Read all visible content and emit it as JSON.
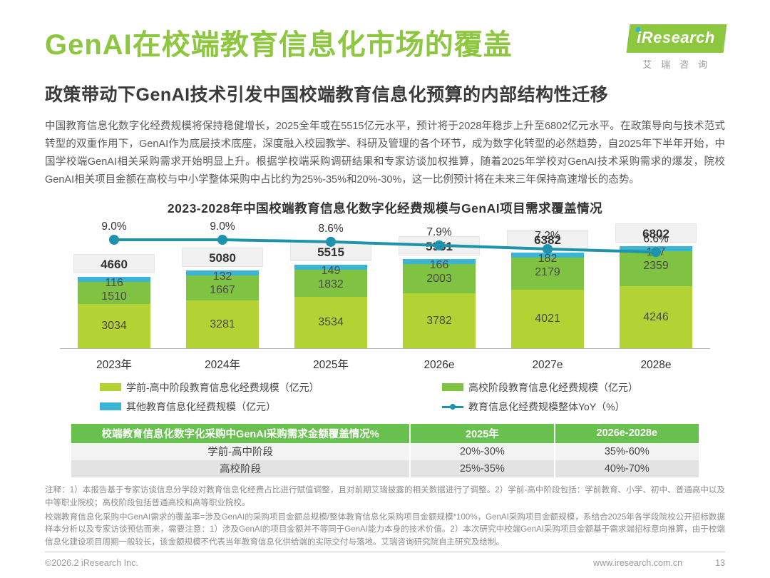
{
  "header": {
    "title": "GenAI在校端教育信息化市场的覆盖",
    "subtitle": "政策带动下GenAI技术引发中国校端教育信息化预算的内部结构性迁移",
    "logo": {
      "brand": "iResearch",
      "sub": "艾瑞咨询"
    }
  },
  "body_text": "中国教育信息化数字化经费规模将保持稳健增长，2025全年或在5515亿元水平，预计将于2028年稳步上升至6802亿元水平。在政策导向与技术范式转型的双重作用下，GenAI作为底层技术底座，深度融入校园教学、科研及管理的各个环节，成为数字化转型的必然趋势，自2025年下半年开始，中国学校端GenAI相关采购需求开始明显上升。根据学校端采购调研结果和专家访谈加权推算，随着2025年学校对GenAI技术采购需求的爆发，院校GenAI相关项目金额在高校与中小学整体采购中占比约为25%-35%和20%-30%，这一比例预计将在未来三年保持高速增长的态势。",
  "chart_data": {
    "type": "bar",
    "subtype": "stacked-bar-with-line",
    "title": "2023-2028年中国校端教育信息化数字化经费规模与GenAI项目需求覆盖情况",
    "categories": [
      "2023年",
      "2024年",
      "2025年",
      "2026e",
      "2027e",
      "2028e"
    ],
    "series": [
      {
        "name": "学前-高中阶段教育信息化经费规模（亿元）",
        "color": "#b3d334",
        "values": [
          3034,
          3281,
          3534,
          3782,
          4021,
          4246
        ]
      },
      {
        "name": "高校阶段教育信息化经费规模（亿元）",
        "color": "#80c343",
        "values": [
          1510,
          1667,
          1832,
          2003,
          2179,
          2359
        ]
      },
      {
        "name": "其他教育信息化经费规模（亿元）",
        "color": "#3ab5d5",
        "values": [
          116,
          132,
          149,
          166,
          182,
          197
        ]
      }
    ],
    "totals": [
      4660,
      5080,
      5515,
      5951,
      6382,
      6802
    ],
    "line": {
      "name": "教育信息化经费规模整体YoY（%）",
      "color": "#1e93ac",
      "values": [
        9.0,
        9.0,
        8.6,
        7.9,
        7.2,
        6.6
      ],
      "labels": [
        "9.0%",
        "9.0%",
        "8.6%",
        "7.9%",
        "7.2%",
        "6.6%"
      ]
    },
    "legend_position": "bottom",
    "grid": false,
    "ylabel": "",
    "xlabel": ""
  },
  "table": {
    "headers": [
      "校端教育信息化数字化采购中GenAI采购需求金额覆盖情况%",
      "2025年",
      "2026e-2028e"
    ],
    "rows": [
      [
        "学前-高中阶段",
        "20%-30%",
        "35%-60%"
      ],
      [
        "高校阶段",
        "25%-35%",
        "40%-70%"
      ]
    ]
  },
  "notes": {
    "note1": "注释：1）本报告基于专家访谈信息分学段对教育信息化经费占比进行赋值调整，且对前期艾瑞披露的相关数据进行了调整。2）学前-高中阶段包括：学前教育、小学、初中、普通高中以及中等职业院校；高校阶段包括普通高校和高等职业院校。",
    "note2": "校端教育信息化采购中GenAI需求的覆盖率=涉及GenAI的采购项目金额总规模/整体教育信息化采购项目金额规模*100%，GenAI采购项目金额规模，系结合2025年各学段院校公开招标数据样本分析以及专家访谈预估而来，需要注意：1）涉及GenAI的项目金额并不等同于GenAI能力本身的技术价值。2）本次研究中校端GenAI采购项目金额基于需求端招标意向推算，由于校端信息化建设项目周期一般较长，该金额规模不代表当年教育信息化供给端的实际交付与落地。艾瑞咨询研究院自主研究及绘制。"
  },
  "footer": {
    "copyright": "©2026.2 iResearch Inc.",
    "website": "www.iresearch.com.cn",
    "page_number": "13"
  }
}
